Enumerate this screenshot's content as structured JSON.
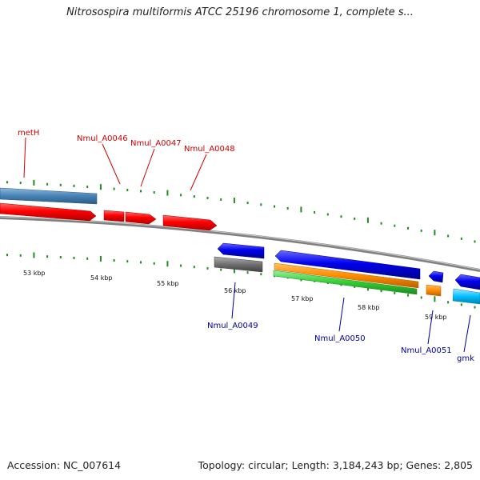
{
  "title": "Nitrosospira multiformis ATCC 25196 chromosome 1, complete s...",
  "footer": {
    "accession": "Accession: NC_007614",
    "summary": "Topology: circular; Length: 3,184,243 bp; Genes: 2,805"
  },
  "colors": {
    "forward_label": "#cc0000",
    "reverse_label": "#000099",
    "ticks": "#228b22",
    "backbone": "#808080"
  },
  "ruler": [
    "53 kbp",
    "54 kbp",
    "55 kbp",
    "56 kbp",
    "57 kbp",
    "58 kbp",
    "59 kbp"
  ],
  "genes": [
    {
      "label": "metH",
      "strand": "forward",
      "color": "#cc0000"
    },
    {
      "label": "Nmul_A0046",
      "strand": "forward",
      "color": "#cc0000"
    },
    {
      "label": "Nmul_A0047",
      "strand": "forward",
      "color": "#cc0000"
    },
    {
      "label": "Nmul_A0048",
      "strand": "forward",
      "color": "#cc0000"
    },
    {
      "label": "Nmul_A0049",
      "strand": "reverse",
      "color": "#0000aa"
    },
    {
      "label": "Nmul_A0050",
      "strand": "reverse",
      "color": "#0000aa"
    },
    {
      "label": "Nmul_A0051",
      "strand": "reverse",
      "color": "#0000aa"
    },
    {
      "label": "gmk",
      "strand": "reverse",
      "color": "#0000aa"
    }
  ]
}
